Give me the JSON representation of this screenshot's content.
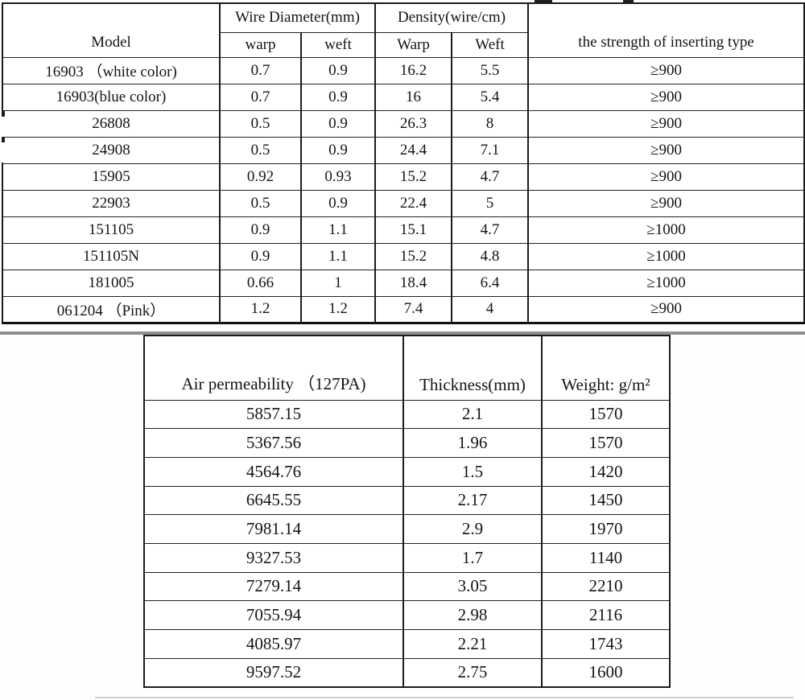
{
  "spec_table": {
    "headers": {
      "model": "Model",
      "wire_diameter_group": "Wire Diameter(mm)",
      "density_group": "Density(wire/cm)",
      "warp_sub": "warp",
      "weft_sub": "weft",
      "warp_density": "Warp",
      "weft_density": "Weft",
      "strength": "the strength of inserting type"
    },
    "rows": [
      [
        "16903 （white color)",
        "0.7",
        "0.9",
        "16.2",
        "5.5",
        "≥900"
      ],
      [
        "16903(blue color)",
        "0.7",
        "0.9",
        "16",
        "5.4",
        "≥900"
      ],
      [
        "26808",
        "0.5",
        "0.9",
        "26.3",
        "8",
        "≥900"
      ],
      [
        "24908",
        "0.5",
        "0.9",
        "24.4",
        "7.1",
        "≥900"
      ],
      [
        "15905",
        "0.92",
        "0.93",
        "15.2",
        "4.7",
        "≥900"
      ],
      [
        "22903",
        "0.5",
        "0.9",
        "22.4",
        "5",
        "≥900"
      ],
      [
        "151105",
        "0.9",
        "1.1",
        "15.1",
        "4.7",
        "≥1000"
      ],
      [
        "151105N",
        "0.9",
        "1.1",
        "15.2",
        "4.8",
        "≥1000"
      ],
      [
        "181005",
        "0.66",
        "1",
        "18.4",
        "6.4",
        "≥1000"
      ],
      [
        "061204 （Pink）",
        "1.2",
        "1.2",
        "7.4",
        "4",
        "≥900"
      ]
    ]
  },
  "permeability_table": {
    "headers": {
      "air_permeability": "Air permeability （127PA)",
      "thickness": "Thickness(mm)",
      "weight": "Weight: g/m²"
    },
    "rows": [
      [
        "5857.15",
        "2.1",
        "1570"
      ],
      [
        "5367.56",
        "1.96",
        "1570"
      ],
      [
        "4564.76",
        "1.5",
        "1420"
      ],
      [
        "6645.55",
        "2.17",
        "1450"
      ],
      [
        "7981.14",
        "2.9",
        "1970"
      ],
      [
        "9327.53",
        "1.7",
        "1140"
      ],
      [
        "7279.14",
        "3.05",
        "2210"
      ],
      [
        "7055.94",
        "2.98",
        "2116"
      ],
      [
        "4085.97",
        "2.21",
        "1743"
      ],
      [
        "9597.52",
        "2.75",
        "1600"
      ]
    ]
  }
}
